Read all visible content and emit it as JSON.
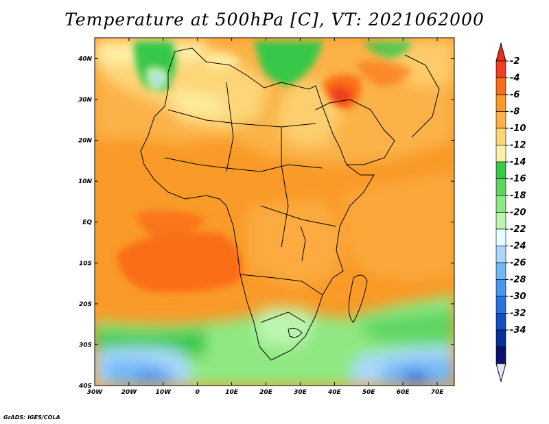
{
  "title": "Temperature at 500hPa [C], VT: 2021062000",
  "footer": "GrADS: IGES/COLA",
  "map": {
    "lat_labels": [
      "40N",
      "30N",
      "20N",
      "10N",
      "EQ",
      "10S",
      "20S",
      "30S",
      "40S"
    ],
    "lon_labels": [
      "30W",
      "20W",
      "10W",
      "0",
      "10E",
      "20E",
      "30E",
      "40E",
      "50E",
      "60E",
      "70E"
    ]
  },
  "colorbar": {
    "labels": [
      "-2",
      "-4",
      "-6",
      "-8",
      "-10",
      "-12",
      "-14",
      "-16",
      "-18",
      "-20",
      "-22",
      "-24",
      "-26",
      "-28",
      "-30",
      "-32",
      "-34"
    ],
    "colors": [
      "#f0401f",
      "#fa6e19",
      "#fa9a28",
      "#fbb24a",
      "#fdd678",
      "#fef0a8",
      "#38c84a",
      "#5fd664",
      "#90e882",
      "#bcf5b0",
      "#e6ffff",
      "#a8d8fa",
      "#76b8f5",
      "#4b96ed",
      "#2a72e0",
      "#1250c4",
      "#08309a",
      "#0a1470"
    ],
    "arrow_top": "#e8301e",
    "arrow_bottom": "#e8e6ff"
  }
}
